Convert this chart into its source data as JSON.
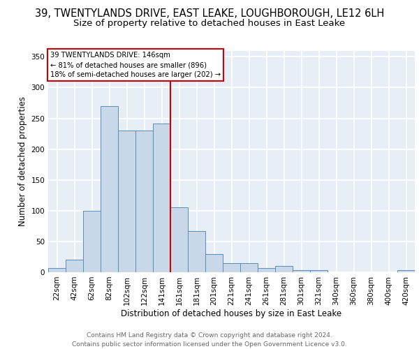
{
  "title_line1": "39, TWENTYLANDS DRIVE, EAST LEAKE, LOUGHBOROUGH, LE12 6LH",
  "title_line2": "Size of property relative to detached houses in East Leake",
  "xlabel": "Distribution of detached houses by size in East Leake",
  "ylabel": "Number of detached properties",
  "bar_labels": [
    "22sqm",
    "42sqm",
    "62sqm",
    "82sqm",
    "102sqm",
    "122sqm",
    "141sqm",
    "161sqm",
    "181sqm",
    "201sqm",
    "221sqm",
    "241sqm",
    "261sqm",
    "281sqm",
    "301sqm",
    "321sqm",
    "340sqm",
    "360sqm",
    "380sqm",
    "400sqm",
    "420sqm"
  ],
  "bar_heights": [
    7,
    20,
    100,
    270,
    230,
    230,
    242,
    105,
    67,
    30,
    15,
    15,
    7,
    10,
    3,
    3,
    0,
    0,
    0,
    0,
    3
  ],
  "bar_color": "#c8d8e8",
  "bar_edgecolor": "#5b8db8",
  "vline_x": 6.5,
  "vline_color": "#cc0000",
  "annotation_text": "39 TWENTYLANDS DRIVE: 146sqm\n← 81% of detached houses are smaller (896)\n18% of semi-detached houses are larger (202) →",
  "annotation_box_edgecolor": "#cc0000",
  "annotation_box_facecolor": "#ffffff",
  "ylim": [
    0,
    360
  ],
  "yticks": [
    0,
    50,
    100,
    150,
    200,
    250,
    300,
    350
  ],
  "footer_text": "Contains HM Land Registry data © Crown copyright and database right 2024.\nContains public sector information licensed under the Open Government Licence v3.0.",
  "bg_color": "#e8eef5",
  "grid_color": "#ffffff",
  "title_fontsize": 10.5,
  "subtitle_fontsize": 9.5,
  "label_fontsize": 8.5,
  "tick_fontsize": 7.5,
  "footer_fontsize": 6.5
}
